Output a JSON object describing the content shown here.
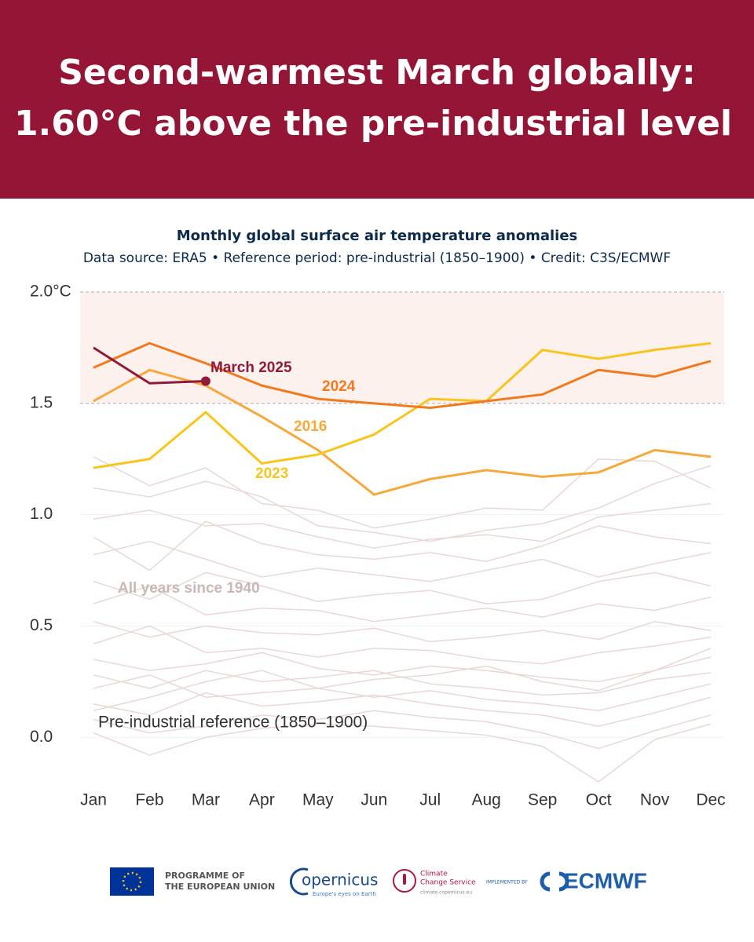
{
  "header": {
    "title_lines": [
      "Second-warmest March globally:",
      "1.60°C above the pre-industrial level"
    ]
  },
  "chart_data": {
    "type": "line",
    "title": "Monthly global surface air temperature anomalies",
    "subtitle": "Data source: ERA5 • Reference period: pre-industrial (1850–1900) • Credit: C3S/ECMWF",
    "categories": [
      "Jan",
      "Feb",
      "Mar",
      "Apr",
      "May",
      "Jun",
      "Jul",
      "Aug",
      "Sep",
      "Oct",
      "Nov",
      "Dec"
    ],
    "ylim": [
      -0.2,
      2.0
    ],
    "yticks": [
      {
        "value": 2.0,
        "label": "2.0°C"
      },
      1.5,
      {
        "value": 1.0,
        "label": "1.0"
      },
      0.5,
      {
        "value": 0.0,
        "label": "0.0"
      }
    ],
    "highlight_band": [
      1.5,
      2.0
    ],
    "dashed_lines": [
      1.5,
      2.0
    ],
    "background": {
      "label": "All years since 1940",
      "color": "#e8d8d5",
      "lines": [
        [
          1.26,
          1.13,
          1.21,
          1.05,
          1.02,
          0.94,
          0.98,
          1.03,
          1.02,
          1.25,
          1.24,
          1.12
        ],
        [
          1.12,
          1.08,
          1.15,
          1.08,
          0.95,
          0.92,
          0.88,
          0.93,
          0.96,
          1.03,
          1.14,
          1.22
        ],
        [
          0.98,
          1.02,
          0.95,
          0.96,
          0.9,
          0.85,
          0.89,
          0.91,
          0.88,
          0.99,
          1.02,
          1.05
        ],
        [
          0.9,
          0.75,
          0.97,
          0.87,
          0.82,
          0.8,
          0.83,
          0.79,
          0.86,
          0.95,
          0.9,
          0.87
        ],
        [
          0.82,
          0.88,
          0.8,
          0.72,
          0.76,
          0.73,
          0.7,
          0.75,
          0.8,
          0.72,
          0.78,
          0.83
        ],
        [
          0.7,
          0.62,
          0.74,
          0.68,
          0.61,
          0.64,
          0.66,
          0.6,
          0.62,
          0.7,
          0.74,
          0.68
        ],
        [
          0.6,
          0.68,
          0.55,
          0.58,
          0.57,
          0.52,
          0.55,
          0.58,
          0.54,
          0.6,
          0.57,
          0.63
        ],
        [
          0.52,
          0.45,
          0.5,
          0.47,
          0.46,
          0.49,
          0.43,
          0.45,
          0.48,
          0.44,
          0.52,
          0.48
        ],
        [
          0.42,
          0.5,
          0.38,
          0.4,
          0.36,
          0.4,
          0.39,
          0.35,
          0.33,
          0.38,
          0.41,
          0.45
        ],
        [
          0.35,
          0.3,
          0.33,
          0.38,
          0.31,
          0.28,
          0.32,
          0.3,
          0.27,
          0.25,
          0.3,
          0.36
        ],
        [
          0.28,
          0.22,
          0.3,
          0.25,
          0.27,
          0.3,
          0.24,
          0.22,
          0.19,
          0.2,
          0.26,
          0.29
        ],
        [
          0.22,
          0.28,
          0.18,
          0.2,
          0.22,
          0.18,
          0.21,
          0.17,
          0.15,
          0.12,
          0.18,
          0.24
        ],
        [
          0.15,
          0.1,
          0.2,
          0.14,
          0.16,
          0.19,
          0.15,
          0.12,
          0.1,
          0.05,
          0.11,
          0.18
        ],
        [
          0.08,
          0.02,
          0.05,
          0.1,
          0.08,
          0.12,
          0.09,
          0.07,
          0.02,
          -0.05,
          0.03,
          0.1
        ],
        [
          0.02,
          -0.08,
          0.0,
          0.04,
          0.06,
          0.05,
          0.03,
          0.01,
          -0.04,
          -0.2,
          -0.01,
          0.06
        ],
        [
          0.12,
          0.18,
          0.25,
          0.3,
          0.22,
          0.26,
          0.28,
          0.32,
          0.25,
          0.21,
          0.3,
          0.4
        ]
      ]
    },
    "reference_label": "Pre-industrial reference (1850–1900)",
    "series": [
      {
        "name": "2016",
        "color": "#f5a93c",
        "values": [
          1.51,
          1.65,
          1.58,
          1.44,
          1.29,
          1.09,
          1.16,
          1.2,
          1.17,
          1.19,
          1.29,
          1.26
        ]
      },
      {
        "name": "2023",
        "color": "#f7c51e",
        "values": [
          1.21,
          1.25,
          1.46,
          1.23,
          1.27,
          1.36,
          1.52,
          1.51,
          1.74,
          1.7,
          1.74,
          1.77
        ]
      },
      {
        "name": "2024",
        "color": "#f07a1e",
        "values": [
          1.66,
          1.77,
          1.68,
          1.58,
          1.52,
          1.5,
          1.48,
          1.51,
          1.54,
          1.65,
          1.62,
          1.69
        ]
      },
      {
        "name": "March 2025",
        "color": "#8e1a3c",
        "values": [
          1.75,
          1.59,
          1.6,
          null,
          null,
          null,
          null,
          null,
          null,
          null,
          null,
          null
        ]
      }
    ]
  },
  "footer": {
    "eu": [
      "PROGRAMME OF",
      "THE EUROPEAN UNION"
    ],
    "copernicus": "opernicus",
    "copernicus_tag": "Europe's eyes on Earth",
    "c3s": [
      "Climate",
      "Change Service"
    ],
    "c3s_url": "climate.copernicus.eu",
    "implemented": "IMPLEMENTED BY",
    "ecmwf": "ECMWF"
  }
}
